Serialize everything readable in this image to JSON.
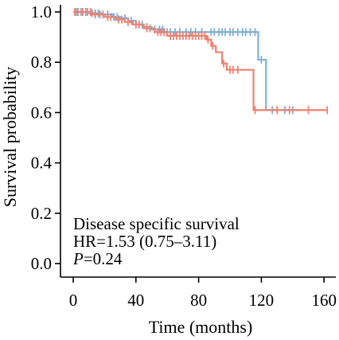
{
  "chart_data": {
    "type": "line",
    "subtype": "kaplan-meier",
    "xlabel": "Time (months)",
    "ylabel": "Survival probability",
    "xlim": [
      -8,
      166
    ],
    "ylim": [
      -0.03,
      1.03
    ],
    "xticks": [
      0,
      40,
      80,
      120,
      160
    ],
    "xtick_labels": [
      "0",
      "40",
      "80",
      "120",
      "160"
    ],
    "yticks": [
      0.0,
      0.2,
      0.4,
      0.6,
      0.8,
      1.0
    ],
    "ytick_labels": [
      "0.0",
      "0.2",
      "0.4",
      "0.6",
      "0.8",
      "1.0"
    ],
    "grid": false,
    "annotations": {
      "line1": "Disease specific survival",
      "line2": "HR=1.53 (0.75–3.11)",
      "p_label": "P",
      "p_value": "=0.24"
    },
    "series": [
      {
        "color": "#7fb0d6",
        "steps": [
          [
            0,
            1.0
          ],
          [
            10,
            0.995
          ],
          [
            18,
            0.99
          ],
          [
            25,
            0.98
          ],
          [
            30,
            0.975
          ],
          [
            35,
            0.965
          ],
          [
            40,
            0.95
          ],
          [
            45,
            0.94
          ],
          [
            50,
            0.93
          ],
          [
            58,
            0.92
          ],
          [
            118,
            0.81
          ],
          [
            123,
            0.61
          ],
          [
            145,
            0.61
          ]
        ],
        "censors": [
          [
            2,
            1.0
          ],
          [
            5,
            1.0
          ],
          [
            8,
            1.0
          ],
          [
            12,
            0.995
          ],
          [
            14,
            0.995
          ],
          [
            16,
            0.995
          ],
          [
            19,
            0.99
          ],
          [
            22,
            0.99
          ],
          [
            26,
            0.98
          ],
          [
            28,
            0.98
          ],
          [
            33,
            0.975
          ],
          [
            37,
            0.965
          ],
          [
            42,
            0.95
          ],
          [
            44,
            0.95
          ],
          [
            47,
            0.94
          ],
          [
            52,
            0.93
          ],
          [
            55,
            0.93
          ],
          [
            57,
            0.93
          ],
          [
            60,
            0.92
          ],
          [
            62,
            0.92
          ],
          [
            65,
            0.92
          ],
          [
            68,
            0.92
          ],
          [
            72,
            0.92
          ],
          [
            75,
            0.92
          ],
          [
            78,
            0.92
          ],
          [
            82,
            0.92
          ],
          [
            88,
            0.92
          ],
          [
            90,
            0.92
          ],
          [
            93,
            0.92
          ],
          [
            95,
            0.92
          ],
          [
            97,
            0.92
          ],
          [
            100,
            0.92
          ],
          [
            102,
            0.92
          ],
          [
            105,
            0.92
          ],
          [
            108,
            0.92
          ],
          [
            110,
            0.92
          ],
          [
            113,
            0.92
          ],
          [
            116,
            0.92
          ],
          [
            120,
            0.81
          ],
          [
            127,
            0.61
          ],
          [
            135,
            0.61
          ],
          [
            140,
            0.61
          ]
        ]
      },
      {
        "color": "#f08070",
        "steps": [
          [
            0,
            1.0
          ],
          [
            12,
            0.99
          ],
          [
            20,
            0.98
          ],
          [
            27,
            0.97
          ],
          [
            33,
            0.96
          ],
          [
            38,
            0.95
          ],
          [
            45,
            0.935
          ],
          [
            52,
            0.92
          ],
          [
            60,
            0.905
          ],
          [
            85,
            0.89
          ],
          [
            88,
            0.865
          ],
          [
            91,
            0.84
          ],
          [
            95,
            0.795
          ],
          [
            98,
            0.77
          ],
          [
            115,
            0.61
          ],
          [
            162,
            0.61
          ]
        ],
        "censors": [
          [
            1,
            1.0
          ],
          [
            3,
            1.0
          ],
          [
            6,
            1.0
          ],
          [
            9,
            1.0
          ],
          [
            11,
            1.0
          ],
          [
            14,
            0.99
          ],
          [
            17,
            0.99
          ],
          [
            22,
            0.98
          ],
          [
            24,
            0.98
          ],
          [
            29,
            0.97
          ],
          [
            31,
            0.97
          ],
          [
            35,
            0.96
          ],
          [
            40,
            0.95
          ],
          [
            42,
            0.95
          ],
          [
            47,
            0.935
          ],
          [
            49,
            0.935
          ],
          [
            54,
            0.92
          ],
          [
            56,
            0.92
          ],
          [
            58,
            0.92
          ],
          [
            62,
            0.905
          ],
          [
            64,
            0.905
          ],
          [
            66,
            0.905
          ],
          [
            68,
            0.905
          ],
          [
            70,
            0.905
          ],
          [
            72,
            0.905
          ],
          [
            74,
            0.905
          ],
          [
            76,
            0.905
          ],
          [
            78,
            0.905
          ],
          [
            80,
            0.905
          ],
          [
            82,
            0.905
          ],
          [
            84,
            0.905
          ],
          [
            86,
            0.89
          ],
          [
            89,
            0.865
          ],
          [
            96,
            0.795
          ],
          [
            100,
            0.77
          ],
          [
            102,
            0.77
          ],
          [
            105,
            0.77
          ],
          [
            116,
            0.61
          ],
          [
            130,
            0.61
          ],
          [
            138,
            0.61
          ],
          [
            150,
            0.61
          ],
          [
            162,
            0.61
          ]
        ]
      }
    ]
  }
}
